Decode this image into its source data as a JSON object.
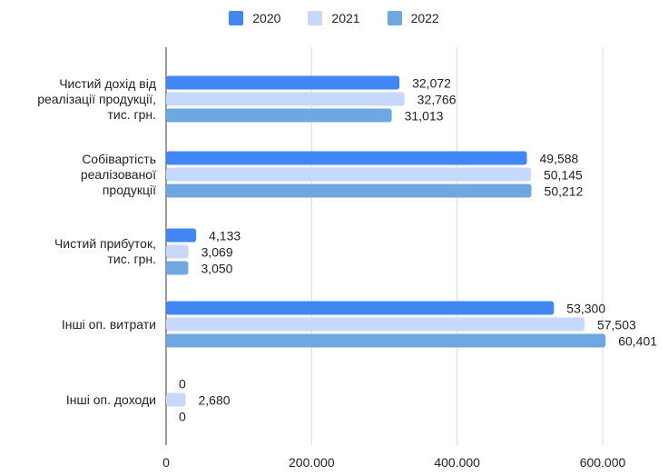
{
  "chart_data": {
    "type": "bar",
    "orientation": "horizontal",
    "categories": [
      "Чистий дохід від реалізації продукції, тис. грн.",
      "Собівартість реалізованої продукції",
      "Чистий прибуток, тис. грн.",
      "Інші оп. витрати",
      "Інші оп. доходи"
    ],
    "category_lines": [
      [
        "Чистий дохід від",
        "реалізації продукції,",
        "тис. грн."
      ],
      [
        "Собівартість",
        "реалізованої",
        "продукції"
      ],
      [
        "Чистий прибуток,",
        "тис. грн."
      ],
      [
        "Інші оп. витрати"
      ],
      [
        "Інші оп. доходи"
      ]
    ],
    "series": [
      {
        "name": "2020",
        "color": "#4285f4",
        "values": [
          320.72,
          495.88,
          41.33,
          533.0,
          0
        ],
        "labels": [
          "32,072",
          "49,588",
          "4,133",
          "53,300",
          "0"
        ]
      },
      {
        "name": "2021",
        "color": "#c6d9fc",
        "values": [
          327.66,
          501.45,
          30.69,
          575.03,
          26.8
        ],
        "labels": [
          "32,766",
          "50,145",
          "3,069",
          "57,503",
          "2,680"
        ]
      },
      {
        "name": "2022",
        "color": "#6fa8e0",
        "values": [
          310.13,
          502.12,
          30.5,
          604.01,
          0
        ],
        "labels": [
          "31,013",
          "50,212",
          "3,050",
          "60,401",
          "0"
        ]
      }
    ],
    "xlim": [
      0,
      600
    ],
    "ticks": [
      0,
      200,
      400,
      600
    ],
    "tick_labels": [
      "0",
      "200.000",
      "400.000",
      "600.000"
    ],
    "grid": true,
    "legend_position": "top"
  }
}
